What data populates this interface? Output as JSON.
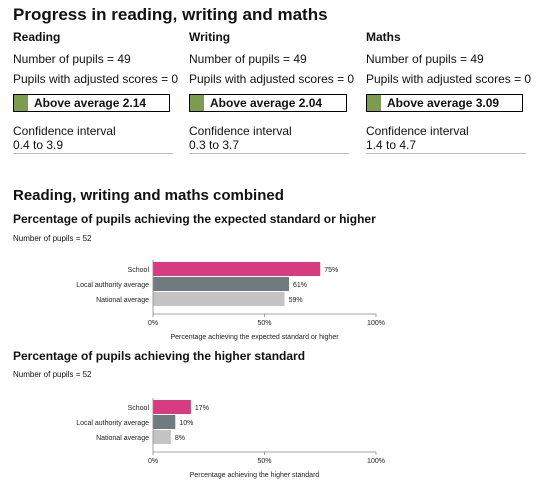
{
  "progress": {
    "title": "Progress in reading, writing and maths",
    "subjects": [
      {
        "name": "Reading",
        "pupils": "Number of pupils = 49",
        "adjusted": "Pupils with adjusted scores = 0",
        "score_label": "Above average 2.14",
        "ci_label": "Confidence interval",
        "ci_value": "0.4 to 3.9"
      },
      {
        "name": "Writing",
        "pupils": "Number of pupils = 49",
        "adjusted": "Pupils with adjusted scores = 0",
        "score_label": "Above average 2.04",
        "ci_label": "Confidence interval",
        "ci_value": "0.3 to 3.7"
      },
      {
        "name": "Maths",
        "pupils": "Number of pupils = 49",
        "adjusted": "Pupils with adjusted scores = 0",
        "score_label": "Above average 3.09",
        "ci_label": "Confidence interval",
        "ci_value": "1.4 to 4.7"
      }
    ],
    "score_color": "#7d9c4f"
  },
  "combined": {
    "title": "Reading, writing and maths combined"
  },
  "colors": {
    "school": "#d63c7f",
    "local": "#6f7b7e",
    "national": "#c4c4c4"
  },
  "chart_data": [
    {
      "type": "bar",
      "orientation": "horizontal",
      "title": "Percentage of pupils achieving the expected standard or higher",
      "note": "Number of pupils = 52",
      "categories": [
        "School",
        "Local authority average",
        "National average"
      ],
      "values": [
        75,
        61,
        59
      ],
      "value_labels": [
        "75%",
        "61%",
        "59%"
      ],
      "xlabel": "Percentage achieving the expected standard or higher",
      "xlim": [
        0,
        100
      ],
      "ticks": [
        "0%",
        "50%",
        "100%"
      ],
      "tick_values": [
        0,
        50,
        100
      ]
    },
    {
      "type": "bar",
      "orientation": "horizontal",
      "title": "Percentage of pupils achieving the higher standard",
      "note": "Number of pupils = 52",
      "categories": [
        "School",
        "Local authority average",
        "National average"
      ],
      "values": [
        17,
        10,
        8
      ],
      "value_labels": [
        "17%",
        "10%",
        "8%"
      ],
      "xlabel": "Percentage achieving the higher standard",
      "xlim": [
        0,
        100
      ],
      "ticks": [
        "0%",
        "50%",
        "100%"
      ],
      "tick_values": [
        0,
        50,
        100
      ]
    }
  ]
}
